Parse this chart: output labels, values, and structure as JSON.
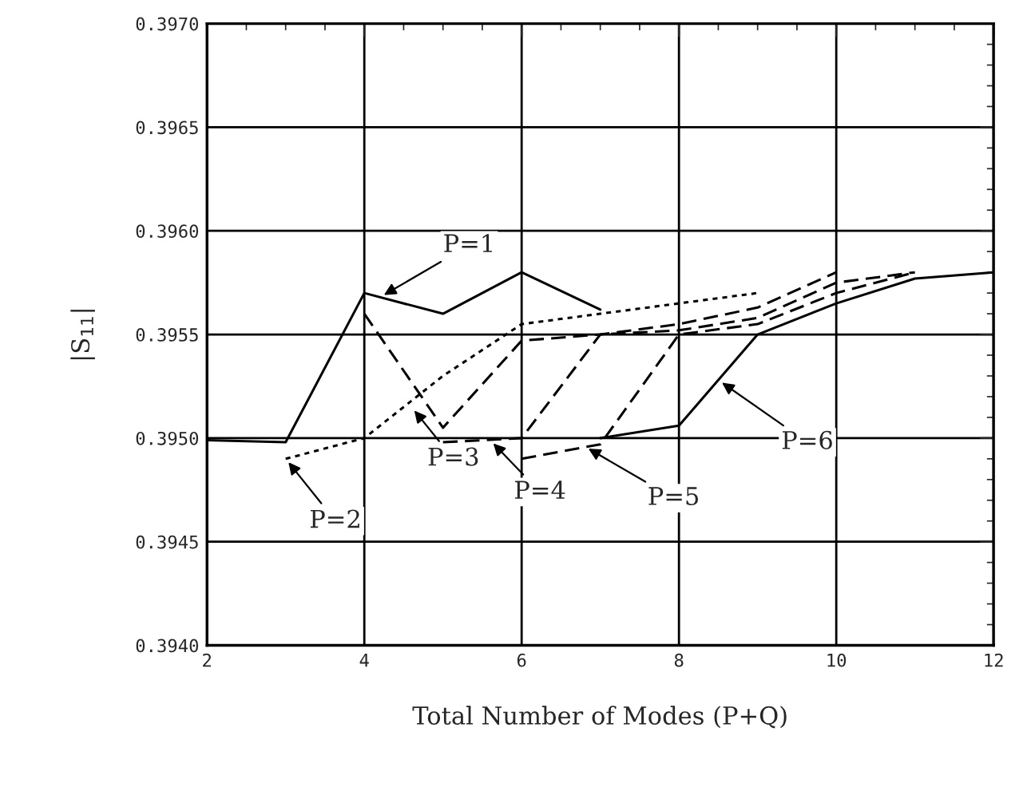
{
  "chart_data": {
    "type": "line",
    "xlabel": "Total Number of Modes (P+Q)",
    "ylabel": "|S$_{11}$|",
    "grid": true,
    "marker": "none",
    "legend": false,
    "xlim": [
      2,
      12
    ],
    "xticks": [
      2,
      4,
      6,
      8,
      10,
      12
    ],
    "ylim": [
      0.394,
      0.397
    ],
    "yticks": [
      {
        "value": 0.394,
        "label": "0.3940"
      },
      {
        "value": 0.3945,
        "label": "0.3945"
      },
      {
        "value": 0.395,
        "label": "0.3950"
      },
      {
        "value": 0.3955,
        "label": "0.3955"
      },
      {
        "value": 0.396,
        "label": "0.3960"
      },
      {
        "value": 0.3965,
        "label": "0.3965"
      },
      {
        "value": 0.397,
        "label": "0.3970"
      }
    ],
    "series": [
      {
        "color": "#000000",
        "line_style": "solid",
        "x": [
          2,
          3,
          4,
          5,
          6,
          7
        ],
        "values": [
          0.39499,
          0.39498,
          0.3957,
          0.3956,
          0.3958,
          0.39562
        ]
      },
      {
        "color": "#000000",
        "line_style": "dotted",
        "x": [
          3,
          4,
          5,
          6,
          7,
          8,
          9
        ],
        "values": [
          0.3949,
          0.395,
          0.3953,
          0.39555,
          0.3956,
          0.39565,
          0.3957
        ]
      },
      {
        "color": "#000000",
        "line_style": "dashed",
        "x": [
          4,
          5,
          6,
          7,
          8,
          9,
          10
        ],
        "values": [
          0.3956,
          0.39505,
          0.39547,
          0.3955,
          0.39555,
          0.39563,
          0.3958
        ]
      },
      {
        "color": "#000000",
        "line_style": "dashed",
        "x": [
          5,
          6,
          7,
          8,
          9,
          10,
          11
        ],
        "values": [
          0.39498,
          0.395,
          0.3955,
          0.39552,
          0.39558,
          0.39575,
          0.3958
        ]
      },
      {
        "color": "#000000",
        "line_style": "dashed",
        "x": [
          6,
          7,
          8,
          9,
          10,
          11
        ],
        "values": [
          0.3949,
          0.39497,
          0.3955,
          0.39555,
          0.3957,
          0.3958
        ]
      },
      {
        "color": "#000000",
        "line_style": "solid",
        "x": [
          7,
          8,
          9,
          10,
          11,
          12
        ],
        "values": [
          0.395,
          0.39506,
          0.3955,
          0.39565,
          0.39577,
          0.3958
        ]
      }
    ],
    "annotations": [
      {
        "text": "P=1",
        "x": 4.2,
        "y": 0.39568
      },
      {
        "text": "P=2",
        "x": 3,
        "y": 0.3949
      },
      {
        "text": "P=3",
        "x": 4.6,
        "y": 0.39515
      },
      {
        "text": "P=4",
        "x": 5.6,
        "y": 0.39499
      },
      {
        "text": "P=5",
        "x": 6.8,
        "y": 0.39496
      },
      {
        "text": "P=6",
        "x": 8.5,
        "y": 0.39528
      }
    ]
  }
}
